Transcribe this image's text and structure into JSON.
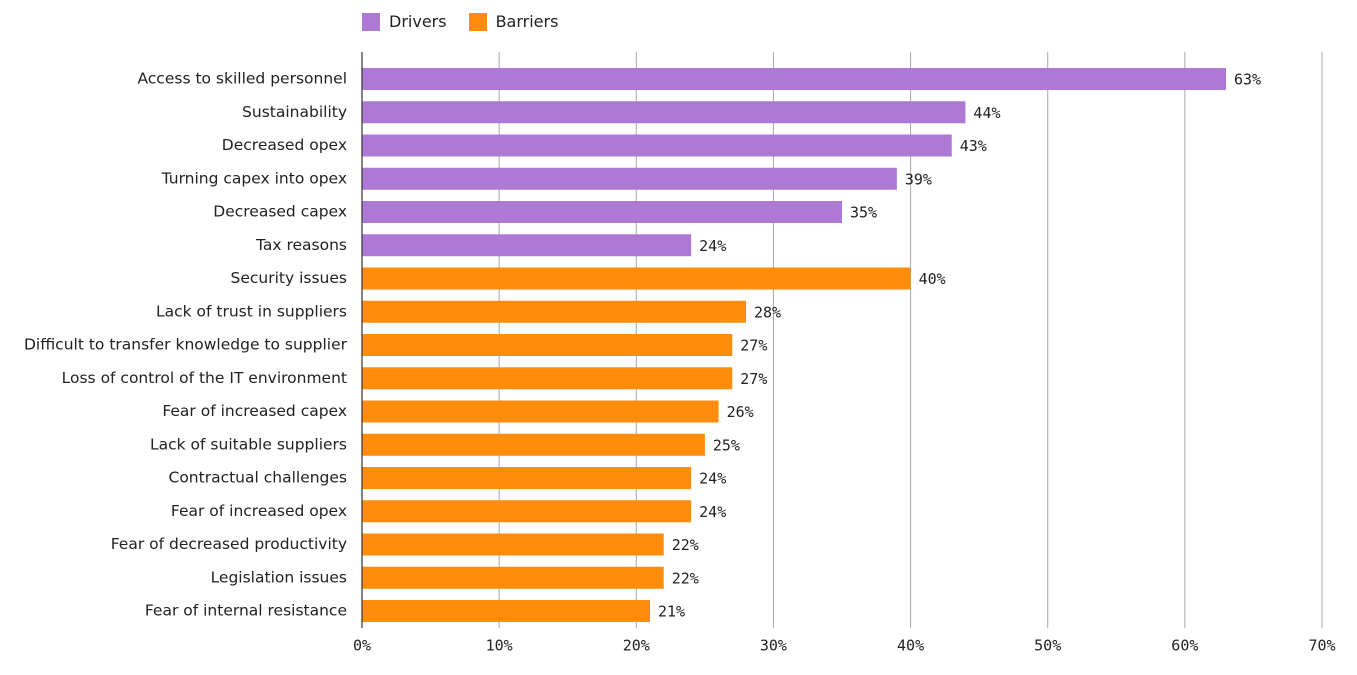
{
  "chart_data": {
    "type": "bar",
    "orientation": "horizontal",
    "title": "",
    "xlabel": "",
    "ylabel": "",
    "xlim": [
      0,
      70
    ],
    "x_ticks": [
      0,
      10,
      20,
      30,
      40,
      50,
      60,
      70
    ],
    "x_tick_labels": [
      "0%",
      "10%",
      "20%",
      "30%",
      "40%",
      "50%",
      "60%",
      "70%"
    ],
    "grid": true,
    "legend_position": "top-left",
    "series": [
      {
        "name": "Drivers",
        "color": "#AE78D5"
      },
      {
        "name": "Barriers",
        "color": "#FF8C0A"
      }
    ],
    "bars": [
      {
        "category": "Access to skilled personnel",
        "value": 63,
        "label": "63%",
        "series": "Drivers"
      },
      {
        "category": "Sustainability",
        "value": 44,
        "label": "44%",
        "series": "Drivers"
      },
      {
        "category": "Decreased opex",
        "value": 43,
        "label": "43%",
        "series": "Drivers"
      },
      {
        "category": "Turning capex into opex",
        "value": 39,
        "label": "39%",
        "series": "Drivers"
      },
      {
        "category": "Decreased capex",
        "value": 35,
        "label": "35%",
        "series": "Drivers"
      },
      {
        "category": "Tax reasons",
        "value": 24,
        "label": "24%",
        "series": "Drivers"
      },
      {
        "category": "Security issues",
        "value": 40,
        "label": "40%",
        "series": "Barriers"
      },
      {
        "category": "Lack of trust in suppliers",
        "value": 28,
        "label": "28%",
        "series": "Barriers"
      },
      {
        "category": "Difficult to transfer knowledge to supplier",
        "value": 27,
        "label": "27%",
        "series": "Barriers"
      },
      {
        "category": "Loss of control of the IT environment",
        "value": 27,
        "label": "27%",
        "series": "Barriers"
      },
      {
        "category": "Fear of increased capex",
        "value": 26,
        "label": "26%",
        "series": "Barriers"
      },
      {
        "category": "Lack of suitable suppliers",
        "value": 25,
        "label": "25%",
        "series": "Barriers"
      },
      {
        "category": "Contractual challenges",
        "value": 24,
        "label": "24%",
        "series": "Barriers"
      },
      {
        "category": "Fear of increased opex",
        "value": 24,
        "label": "24%",
        "series": "Barriers"
      },
      {
        "category": "Fear of decreased productivity",
        "value": 22,
        "label": "22%",
        "series": "Barriers"
      },
      {
        "category": "Legislation issues",
        "value": 22,
        "label": "22%",
        "series": "Barriers"
      },
      {
        "category": "Fear of internal resistance",
        "value": 21,
        "label": "21%",
        "series": "Barriers"
      }
    ]
  }
}
